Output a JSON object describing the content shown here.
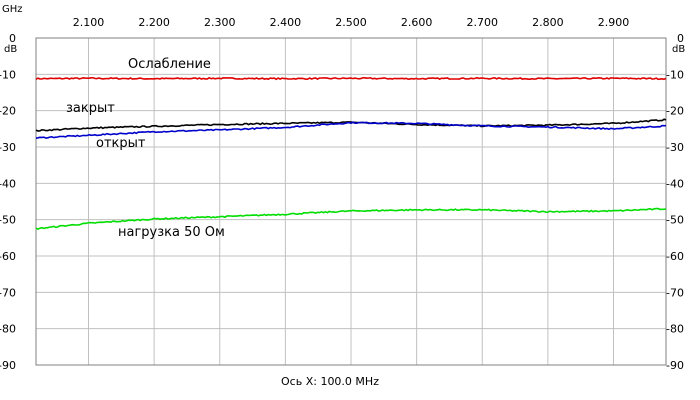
{
  "chart_data": {
    "type": "line",
    "x_unit": "GHz",
    "y_unit": "dB",
    "x_ticks": [
      "2.100",
      "2.200",
      "2.300",
      "2.400",
      "2.500",
      "2.600",
      "2.700",
      "2.800",
      "2.900"
    ],
    "y_ticks": [
      "0",
      "-10",
      "-20",
      "-30",
      "-40",
      "-50",
      "-60",
      "-70",
      "-80",
      "-90"
    ],
    "xlim": [
      2.02,
      2.98
    ],
    "ylim": [
      -90,
      0
    ],
    "grid": true,
    "footer": "Ось X: 100.0 MHz",
    "series": [
      {
        "name": "Ослабление",
        "color": "#e00000",
        "x": [
          2.02,
          2.1,
          2.2,
          2.3,
          2.4,
          2.5,
          2.6,
          2.7,
          2.8,
          2.9,
          2.98
        ],
        "y": [
          -11.2,
          -11.1,
          -11.2,
          -11.1,
          -11.2,
          -11.1,
          -11.2,
          -11.1,
          -11.2,
          -11.1,
          -11.2
        ]
      },
      {
        "name": "закрыт",
        "color": "#000000",
        "x": [
          2.02,
          2.1,
          2.2,
          2.3,
          2.4,
          2.5,
          2.6,
          2.7,
          2.8,
          2.9,
          2.98
        ],
        "y": [
          -25.5,
          -24.8,
          -24.3,
          -23.8,
          -23.5,
          -23.2,
          -23.8,
          -24.2,
          -24.0,
          -23.5,
          -22.5
        ]
      },
      {
        "name": "открыт",
        "color": "#0000cc",
        "x": [
          2.02,
          2.1,
          2.2,
          2.3,
          2.4,
          2.5,
          2.6,
          2.7,
          2.8,
          2.9,
          2.98
        ],
        "y": [
          -27.5,
          -26.8,
          -25.8,
          -25.3,
          -24.6,
          -23.3,
          -23.5,
          -24.2,
          -24.5,
          -25.0,
          -24.2
        ]
      },
      {
        "name": "нагрузка 50 Ом",
        "color": "#00dd00",
        "x": [
          2.02,
          2.1,
          2.2,
          2.3,
          2.4,
          2.5,
          2.6,
          2.7,
          2.8,
          2.9,
          2.98
        ],
        "y": [
          -52.5,
          -51.0,
          -49.8,
          -49.2,
          -48.5,
          -47.6,
          -47.3,
          -47.3,
          -47.8,
          -47.6,
          -47.0
        ]
      }
    ]
  }
}
